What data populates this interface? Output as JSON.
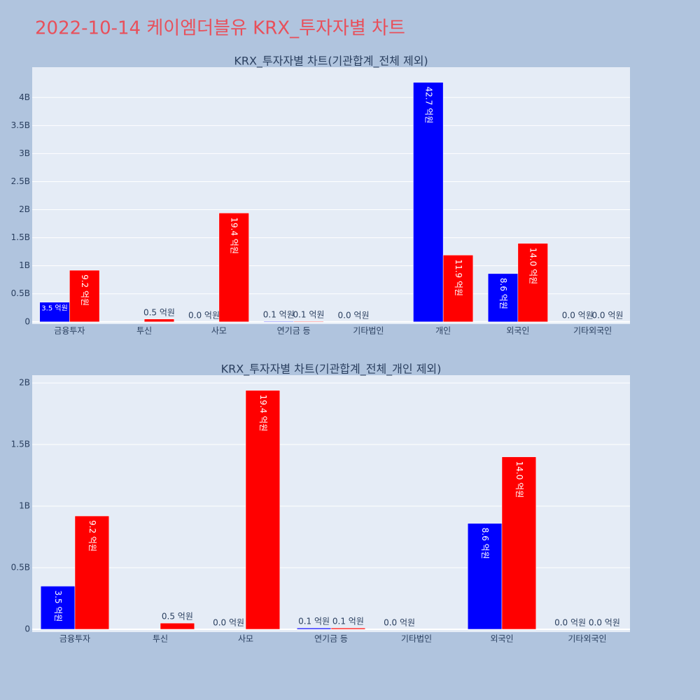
{
  "title": "2022-10-14 케이엠더블유 KRX_투자자별 차트",
  "chart_data": [
    {
      "type": "bar",
      "title": "KRX_투자자별 차트(기관합계_전체 제외)",
      "categories": [
        "금융투자",
        "투신",
        "사모",
        "연기금 등",
        "기타법인",
        "개인",
        "외국인",
        "기타외국인"
      ],
      "series": [
        {
          "color": "#0000ff",
          "values": [
            350000000,
            null,
            0,
            10000000,
            0,
            4270000000,
            860000000,
            0
          ],
          "value_labels": [
            "3.5 억원",
            null,
            "0.0 억원",
            "0.1 억원",
            "0.0 억원",
            "42.7 억원",
            "8.6 억원",
            "0.0 억원"
          ]
        },
        {
          "color": "#ff0000",
          "values": [
            920000000,
            50000000,
            1940000000,
            10000000,
            null,
            1190000000,
            1400000000,
            0
          ],
          "value_labels": [
            "9.2 억원",
            "0.5 억원",
            "19.4 억원",
            "0.1 억원",
            null,
            "11.9 억원",
            "14.0 억원",
            "0.0 억원"
          ]
        }
      ],
      "ylim": [
        -40000000,
        4540000000
      ],
      "yticks": [
        0,
        {
          "value": 500000000,
          "label": "0.5B"
        },
        {
          "value": 1000000000,
          "label": "1B"
        },
        {
          "value": 1500000000,
          "label": "1.5B"
        },
        {
          "value": 2000000000,
          "label": "2B"
        },
        {
          "value": 2500000000,
          "label": "2.5B"
        },
        {
          "value": 3000000000,
          "label": "3B"
        },
        {
          "value": 3500000000,
          "label": "3.5B"
        },
        {
          "value": 4000000000,
          "label": "4B"
        }
      ],
      "grid": true
    },
    {
      "type": "bar",
      "title": "KRX_투자자별 차트(기관합계_전체_개인 제외)",
      "categories": [
        "금융투자",
        "투신",
        "사모",
        "연기금 등",
        "기타법인",
        "외국인",
        "기타외국인"
      ],
      "series": [
        {
          "color": "#0000ff",
          "values": [
            350000000,
            null,
            0,
            10000000,
            0,
            860000000,
            0
          ],
          "value_labels": [
            "3.5 억원",
            null,
            "0.0 억원",
            "0.1 억원",
            "0.0 억원",
            "8.6 억원",
            "0.0 억원"
          ]
        },
        {
          "color": "#ff0000",
          "values": [
            920000000,
            50000000,
            1940000000,
            10000000,
            null,
            1400000000,
            0
          ],
          "value_labels": [
            "9.2 억원",
            "0.5 억원",
            "19.4 억원",
            "0.1 억원",
            null,
            "14.0 억원",
            "0.0 억원"
          ]
        }
      ],
      "ylim": [
        -23000000,
        2063000000
      ],
      "yticks": [
        0,
        {
          "value": 500000000,
          "label": "0.5B"
        },
        {
          "value": 1000000000,
          "label": "1B"
        },
        {
          "value": 1500000000,
          "label": "1.5B"
        },
        {
          "value": 2000000000,
          "label": "2B"
        }
      ],
      "grid": true
    }
  ]
}
